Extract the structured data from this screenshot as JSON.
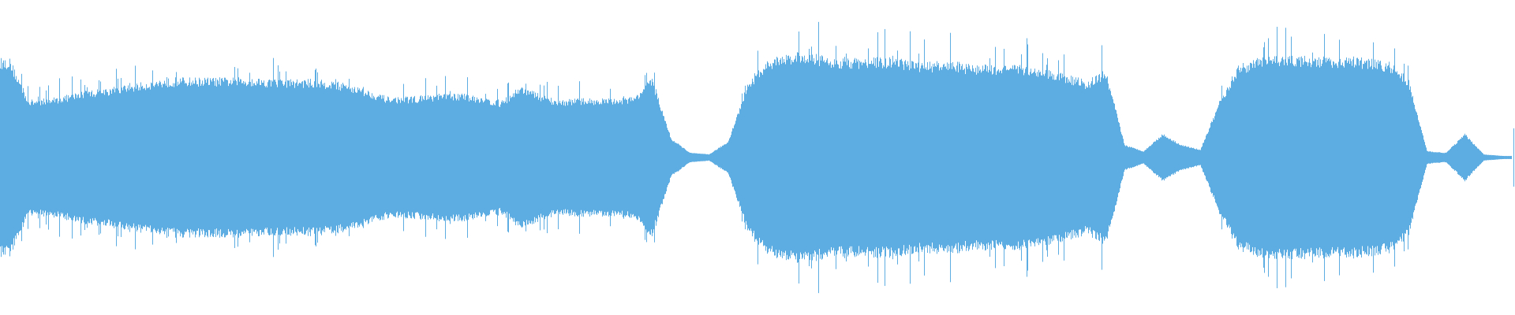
{
  "waveform": {
    "color": "#5DACE2",
    "background": "#FFFFFF",
    "envelope": [
      0.62,
      0.36,
      0.37,
      0.39,
      0.42,
      0.43,
      0.45,
      0.47,
      0.49,
      0.5,
      0.5,
      0.5,
      0.5,
      0.5,
      0.49,
      0.49,
      0.49,
      0.48,
      0.46,
      0.42,
      0.38,
      0.38,
      0.39,
      0.4,
      0.4,
      0.38,
      0.35,
      0.45,
      0.4,
      0.36,
      0.37,
      0.37,
      0.37,
      0.38,
      0.5,
      0.12,
      0.03,
      0.02,
      0.1,
      0.45,
      0.6,
      0.65,
      0.66,
      0.64,
      0.62,
      0.62,
      0.63,
      0.62,
      0.6,
      0.6,
      0.6,
      0.58,
      0.58,
      0.58,
      0.57,
      0.55,
      0.52,
      0.48,
      0.55,
      0.08,
      0.04,
      0.15,
      0.08,
      0.05,
      0.35,
      0.58,
      0.62,
      0.64,
      0.64,
      0.63,
      0.63,
      0.63,
      0.62,
      0.6,
      0.5,
      0.04,
      0.03,
      0.15,
      0.02,
      0.01
    ]
  }
}
